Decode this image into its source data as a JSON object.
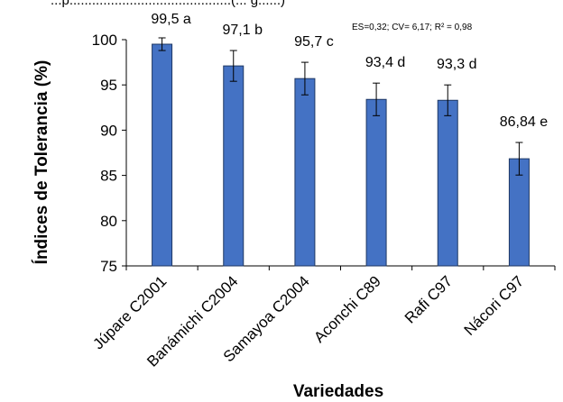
{
  "top_fragment": "...p...........................................(... g......)",
  "stats_text": "ES=0,32; CV= 6,17; R² = 0,98",
  "chart_data": {
    "type": "bar",
    "categories": [
      "Júpare C2001",
      "Banámichi C2004",
      "Samayoa C2004",
      "Aconchi C89",
      "Rafi C97",
      "Nácori C97"
    ],
    "values": [
      99.5,
      97.1,
      95.7,
      93.4,
      93.3,
      86.84
    ],
    "errors": [
      0.7,
      1.7,
      1.8,
      1.8,
      1.7,
      1.8
    ],
    "data_labels": [
      "99,5 a",
      "97,1 b",
      "95,7 c",
      "93,4 d",
      "93,3 d",
      "86,84  e"
    ],
    "ylabel": "Índices de Tolerancia (%)",
    "xlabel": "Variedades",
    "ylim": [
      75,
      100
    ],
    "yticks": [
      75,
      80,
      85,
      90,
      95,
      100
    ],
    "bar_color": "#4472c4",
    "bar_edge_color": "#1f3864",
    "grid": false
  }
}
